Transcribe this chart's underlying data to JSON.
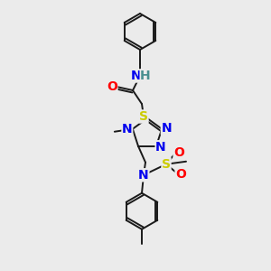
{
  "bg_color": "#ebebeb",
  "bond_color": "#1a1a1a",
  "atom_colors": {
    "N": "#0000ee",
    "O": "#ff0000",
    "S_thio": "#cccc00",
    "S_sulfonyl": "#cccc00",
    "H": "#4a9090",
    "C": "#1a1a1a"
  },
  "lw": 1.4,
  "font_size": 10
}
